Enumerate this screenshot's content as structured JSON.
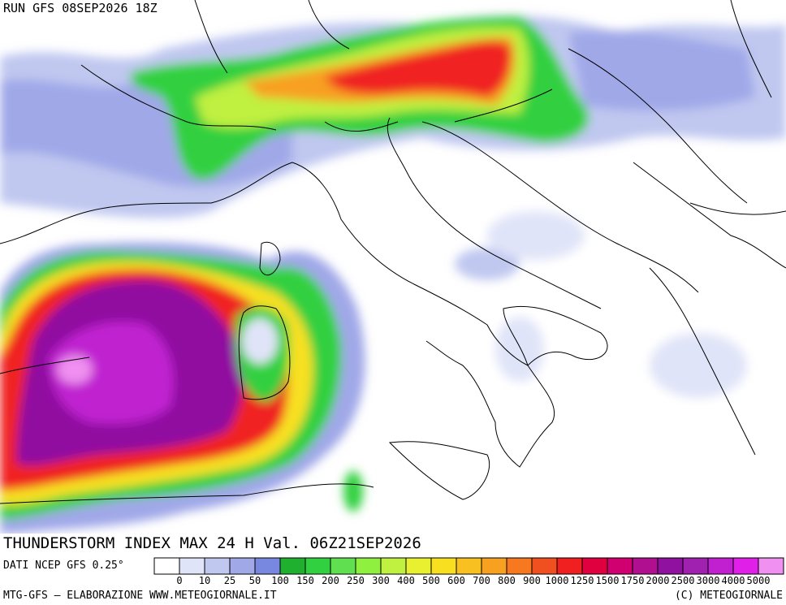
{
  "header": {
    "run": "RUN GFS 08SEP2026 18Z"
  },
  "map": {
    "title": "THUNDERSTORM INDEX MAX 24 H Val. 06Z21SEP2026",
    "source": "DATI NCEP GFS 0.25°"
  },
  "legend": {
    "levels": [
      0,
      10,
      25,
      50,
      100,
      150,
      200,
      250,
      300,
      400,
      500,
      600,
      700,
      800,
      900,
      1000,
      1250,
      1500,
      1750,
      2000,
      2500,
      3000,
      4000,
      5000
    ],
    "colors": [
      "#ffffff",
      "#e0e4f8",
      "#c0c8f0",
      "#a0a8e8",
      "#7888e0",
      "#20b030",
      "#30d040",
      "#60e050",
      "#90f040",
      "#c0f040",
      "#e8f030",
      "#f8e020",
      "#f8c020",
      "#f8a020",
      "#f87820",
      "#f05020",
      "#f02020",
      "#e00040",
      "#d00070",
      "#b01090",
      "#9010a0",
      "#a020b0",
      "#c020d0",
      "#e020e8",
      "#f090f0"
    ]
  },
  "footer": {
    "credit": "MTG-GFS – ELABORAZIONE WWW.METEOGIORNALE.IT",
    "copyright": "(C) METEOGIORNALE"
  }
}
